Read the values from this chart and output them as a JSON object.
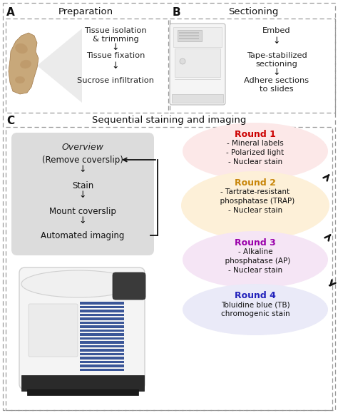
{
  "fig_width": 4.74,
  "fig_height": 5.79,
  "bg_color": "#ffffff",
  "panel_A_label": "A",
  "panel_A_title": "Preparation",
  "panel_A_steps": [
    "Tissue isolation\n& trimming",
    "Tissue fixation",
    "Sucrose infiltration"
  ],
  "panel_B_label": "B",
  "panel_B_title": "Sectioning",
  "panel_B_steps": [
    "Embed",
    "Tape-stabilized\nsectioning",
    "Adhere sections\nto slides"
  ],
  "panel_C_label": "C",
  "panel_C_title": "Sequential staining and imaging",
  "overview_title": "Overview",
  "overview_steps": [
    "(Remove coverslip)",
    "Stain",
    "Mount coverslip",
    "Automated imaging"
  ],
  "overview_bg": "#dcdcdc",
  "rounds": [
    {
      "title": "Round 1",
      "title_color": "#cc0000",
      "bg_color": "#fce8e8",
      "items": "- Mineral labels\n- Polarized light\n- Nuclear stain"
    },
    {
      "title": "Round 2",
      "title_color": "#c8860a",
      "bg_color": "#fdf0d8",
      "items": "- Tartrate-resistant\n  phosphatase (TRAP)\n- Nuclear stain"
    },
    {
      "title": "Round 3",
      "title_color": "#9900aa",
      "bg_color": "#f5e5f5",
      "items": "- Alkaline\n  phosphatase (AP)\n- Nuclear stain"
    },
    {
      "title": "Round 4",
      "title_color": "#2222bb",
      "bg_color": "#eaeaf8",
      "items": "Toluidine blue (TB)\nchromogenic stain"
    }
  ],
  "text_color": "#222222",
  "arrow_color": "#111111",
  "dash_color": "#999999"
}
